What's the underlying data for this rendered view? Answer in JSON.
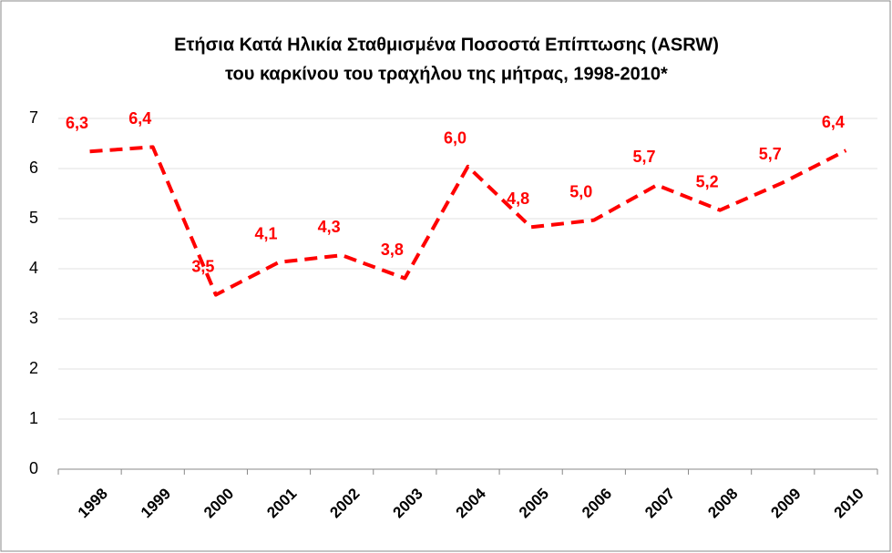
{
  "chart_data": {
    "type": "line",
    "title": [
      "Ετήσια Κατά Ηλικία Σταθμισμένα Ποσοστά Επίπτωσης (ASRW)",
      "του καρκίνου του τραχήλου της μήτρας, 1998-2010*"
    ],
    "categories": [
      "1998",
      "1999",
      "2000",
      "2001",
      "2002",
      "2003",
      "2004",
      "2005",
      "2006",
      "2007",
      "2008",
      "2009",
      "2010"
    ],
    "series": [
      {
        "name": "ASRW",
        "color": "#ff0000",
        "values": [
          6.34,
          6.43,
          3.48,
          4.13,
          4.27,
          3.81,
          6.04,
          4.83,
          4.97,
          5.67,
          5.17,
          5.72,
          6.36
        ],
        "value_labels": [
          "6,3",
          "6,4",
          "3,5",
          "4,1",
          "4,3",
          "3,8",
          "6,0",
          "4,8",
          "5,0",
          "5,7",
          "5,2",
          "5,7",
          "6,4"
        ]
      }
    ],
    "ylim": [
      0,
      7
    ],
    "yticks": [
      0,
      1,
      2,
      3,
      4,
      5,
      6,
      7
    ],
    "grid": true,
    "line_style": "dashed"
  }
}
